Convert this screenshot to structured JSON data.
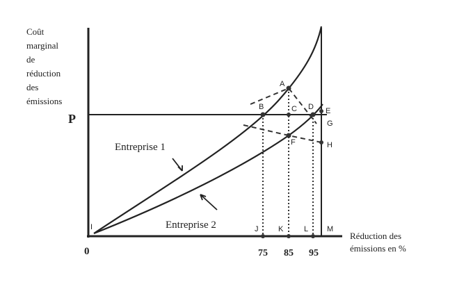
{
  "y_axis_label": [
    "Coût",
    "marginal",
    "de",
    "réduction",
    "des",
    "émissions"
  ],
  "x_axis_label": [
    "Réduction des",
    "émissions en %"
  ],
  "origin": "0",
  "price_label": "P",
  "curves": [
    {
      "label": "Entreprise 1"
    },
    {
      "label": "Entreprise 2"
    }
  ],
  "points": {
    "A": "A",
    "B": "B",
    "C": "C",
    "D": "D",
    "E": "E",
    "F": "F",
    "G": "G",
    "H": "H",
    "I": "I",
    "J": "J",
    "K": "K",
    "L": "L",
    "M": "M"
  },
  "x_ticks": [
    "75",
    "85",
    "95"
  ]
}
